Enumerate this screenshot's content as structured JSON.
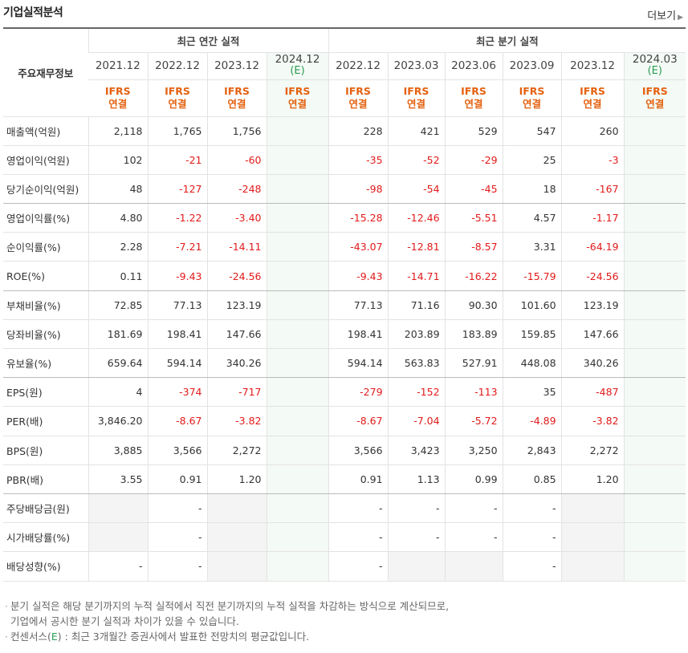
{
  "header": {
    "title": "기업실적분석",
    "more_label": "더보기"
  },
  "table": {
    "corner_label": "주요재무정보",
    "annual_group": "최근 연간 실적",
    "quarterly_group": "최근 분기 실적",
    "annual_periods": [
      "2021.12",
      "2022.12",
      "2023.12",
      "2024.12"
    ],
    "quarterly_periods": [
      "2022.12",
      "2023.03",
      "2023.06",
      "2023.09",
      "2023.12",
      "2024.03"
    ],
    "estimate_mark": "(E)",
    "ifrs_label": "IFRS",
    "ifrs_sub": "연결",
    "rows": [
      {
        "label": "매출액(억원)",
        "values": [
          "2,118",
          "1,765",
          "1,756",
          "",
          "228",
          "421",
          "529",
          "547",
          "260",
          ""
        ]
      },
      {
        "label": "영업이익(억원)",
        "values": [
          "102",
          "-21",
          "-60",
          "",
          "-35",
          "-52",
          "-29",
          "25",
          "-3",
          ""
        ]
      },
      {
        "label": "당기순이익(억원)",
        "values": [
          "48",
          "-127",
          "-248",
          "",
          "-98",
          "-54",
          "-45",
          "18",
          "-167",
          ""
        ]
      },
      {
        "label": "영업이익률(%)",
        "values": [
          "4.80",
          "-1.22",
          "-3.40",
          "",
          "-15.28",
          "-12.46",
          "-5.51",
          "4.57",
          "-1.17",
          ""
        ]
      },
      {
        "label": "순이익률(%)",
        "values": [
          "2.28",
          "-7.21",
          "-14.11",
          "",
          "-43.07",
          "-12.81",
          "-8.57",
          "3.31",
          "-64.19",
          ""
        ]
      },
      {
        "label": "ROE(%)",
        "values": [
          "0.11",
          "-9.43",
          "-24.56",
          "",
          "-9.43",
          "-14.71",
          "-16.22",
          "-15.79",
          "-24.56",
          ""
        ]
      },
      {
        "label": "부채비율(%)",
        "values": [
          "72.85",
          "77.13",
          "123.19",
          "",
          "77.13",
          "71.16",
          "90.30",
          "101.60",
          "123.19",
          ""
        ]
      },
      {
        "label": "당좌비율(%)",
        "values": [
          "181.69",
          "198.41",
          "147.66",
          "",
          "198.41",
          "203.89",
          "183.89",
          "159.85",
          "147.66",
          ""
        ]
      },
      {
        "label": "유보율(%)",
        "values": [
          "659.64",
          "594.14",
          "340.26",
          "",
          "594.14",
          "563.83",
          "527.91",
          "448.08",
          "340.26",
          ""
        ]
      },
      {
        "label": "EPS(원)",
        "values": [
          "4",
          "-374",
          "-717",
          "",
          "-279",
          "-152",
          "-113",
          "35",
          "-487",
          ""
        ]
      },
      {
        "label": "PER(배)",
        "values": [
          "3,846.20",
          "-8.67",
          "-3.82",
          "",
          "-8.67",
          "-7.04",
          "-5.72",
          "-4.89",
          "-3.82",
          ""
        ]
      },
      {
        "label": "BPS(원)",
        "values": [
          "3,885",
          "3,566",
          "2,272",
          "",
          "3,566",
          "3,423",
          "3,250",
          "2,843",
          "2,272",
          ""
        ]
      },
      {
        "label": "PBR(배)",
        "values": [
          "3.55",
          "0.91",
          "1.20",
          "",
          "0.91",
          "1.13",
          "0.99",
          "0.85",
          "1.20",
          ""
        ]
      },
      {
        "label": "주당배당금(원)",
        "values": [
          "",
          "-",
          "",
          "",
          "-",
          "-",
          "-",
          "-",
          "",
          ""
        ]
      },
      {
        "label": "시가배당률(%)",
        "values": [
          "",
          "-",
          "",
          "",
          "-",
          "-",
          "-",
          "-",
          "",
          ""
        ]
      },
      {
        "label": "배당성향(%)",
        "values": [
          "-",
          "-",
          "",
          "",
          "-",
          "",
          "",
          "-",
          "",
          ""
        ]
      }
    ],
    "blank_cells": [
      [
        13,
        0
      ],
      [
        13,
        2
      ],
      [
        13,
        8
      ],
      [
        14,
        0
      ],
      [
        14,
        2
      ],
      [
        14,
        8
      ],
      [
        15,
        2
      ],
      [
        15,
        5
      ],
      [
        15,
        6
      ],
      [
        15,
        8
      ]
    ],
    "separator_after_rows": [
      2,
      5,
      8,
      12
    ]
  },
  "notes": {
    "line1": "분기 실적은 해당 분기까지의 누적 실적에서 직전 분기까지의 누적 실적을 차감하는 방식으로 계산되므로,",
    "line2": "기업에서 공시한 분기 실적과 차이가 있을 수 있습니다.",
    "line3_prefix": "컨센서스(",
    "line3_mark": "E",
    "line3_suffix": ") : 최근 3개월간 증권사에서 발표한 전망치의 평균값입니다."
  },
  "colors": {
    "negative": "#e21a1a",
    "ifrs": "#e4610f",
    "estimate": "#2a9d55"
  }
}
